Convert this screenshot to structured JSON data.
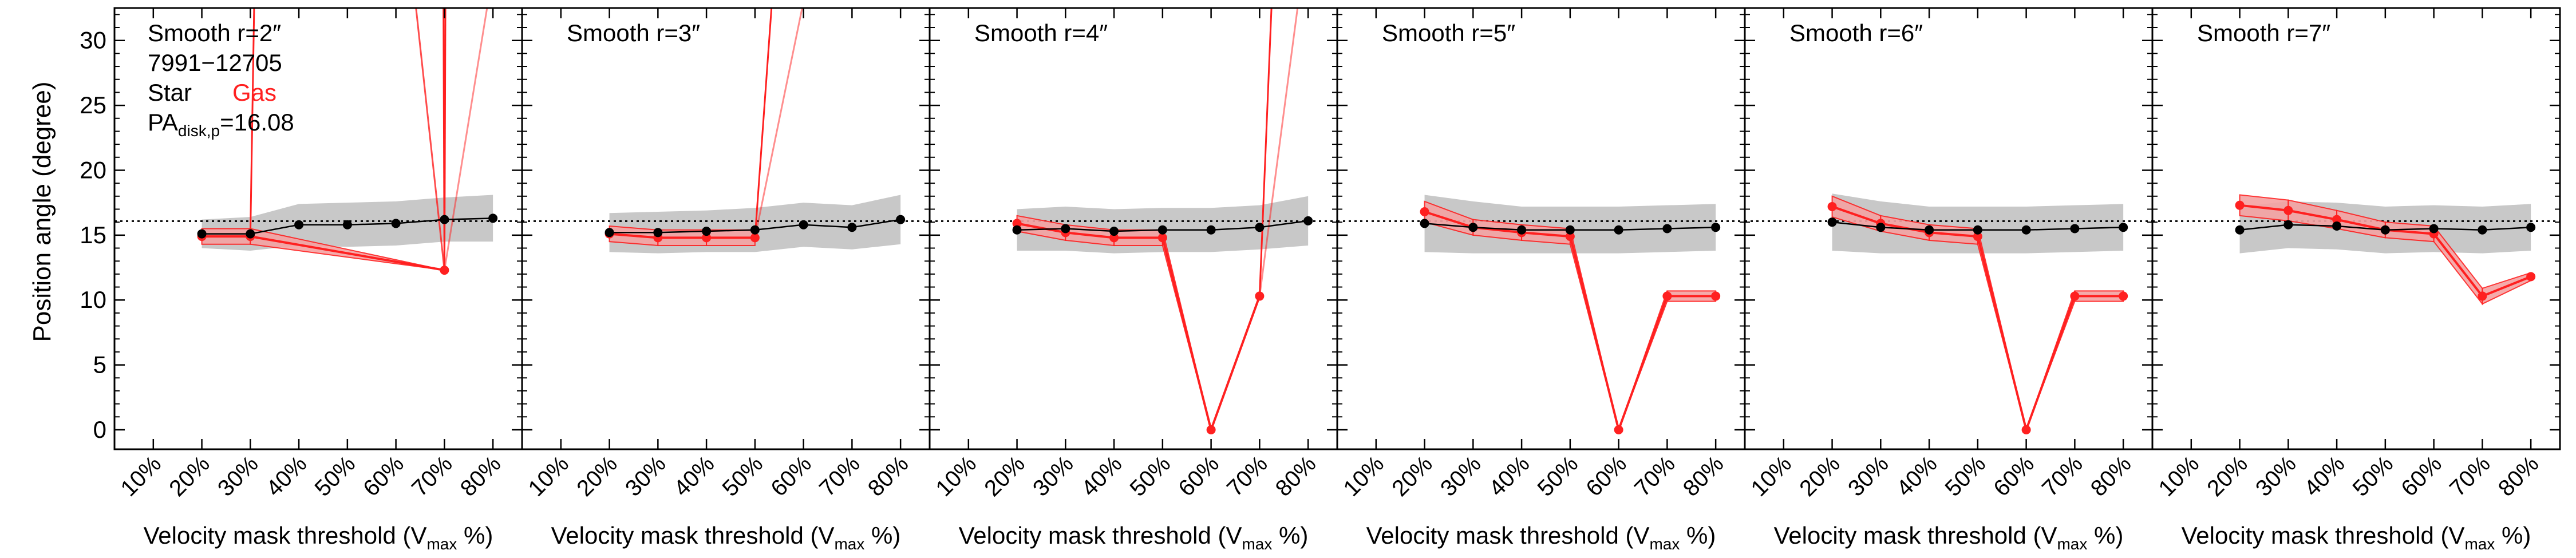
{
  "figure": {
    "ylabel": "Position angle (degree)",
    "xlabel_main": "Velocity mask threshold (V",
    "xlabel_sub": "max",
    "xlabel_tail": " %)",
    "reference_pa": 16.08,
    "panel_info": {
      "object_id": "7991−12705",
      "legend_star": "Star",
      "legend_gas": "Gas",
      "pa_prefix": "PA",
      "pa_sub": "disk,p",
      "pa_value_text": "=16.08"
    },
    "colors": {
      "star": "#000000",
      "star_band": "#c8c8c8",
      "gas": "#ff2020",
      "gas_band": "#f4a3a3",
      "reference": "#000000"
    }
  },
  "chart_data": [
    {
      "type": "line",
      "title": "Smooth r=2″",
      "categories": [
        "10%",
        "20%",
        "30%",
        "40%",
        "50%",
        "60%",
        "70%",
        "80%"
      ],
      "ylim": [
        -1.5,
        32.5
      ],
      "yticks": [
        "0",
        "5",
        "10",
        "15",
        "20",
        "25",
        "30"
      ],
      "star": {
        "x": [
          20,
          30,
          40,
          50,
          60,
          70,
          80
        ],
        "values": [
          15.1,
          15.1,
          15.8,
          15.8,
          15.9,
          16.2,
          16.3
        ],
        "err": [
          1.1,
          1.3,
          1.6,
          1.7,
          1.7,
          1.7,
          1.8
        ]
      },
      "gas": {
        "x": [
          20,
          30,
          70
        ],
        "values": [
          14.9,
          14.9,
          12.3
        ],
        "err": [
          0.6,
          0.6,
          0.0
        ],
        "pinned": []
      },
      "gas_spikes": [
        {
          "x0": 30,
          "y0": 14.9,
          "x1": 30.8,
          "y1": 33,
          "opacity": 1
        },
        {
          "x0": 70,
          "y0": 12.3,
          "x1": 64,
          "y1": 33,
          "opacity": 0.8
        },
        {
          "x0": 70,
          "y0": 12.3,
          "x1": 69.8,
          "y1": 33,
          "opacity": 1
        },
        {
          "x0": 70,
          "y0": 12.3,
          "x1": 70.2,
          "y1": 33,
          "opacity": 1
        },
        {
          "x0": 70,
          "y0": 12.3,
          "x1": 79,
          "y1": 33,
          "opacity": 0.5
        }
      ],
      "show_info": true
    },
    {
      "type": "line",
      "title": "Smooth r=3″",
      "categories": [
        "10%",
        "20%",
        "30%",
        "40%",
        "50%",
        "60%",
        "70%",
        "80%"
      ],
      "ylim": [
        -1.5,
        32.5
      ],
      "star": {
        "x": [
          20,
          30,
          40,
          50,
          60,
          70,
          80
        ],
        "values": [
          15.2,
          15.2,
          15.3,
          15.4,
          15.8,
          15.6,
          16.2
        ],
        "err": [
          1.5,
          1.6,
          1.6,
          1.7,
          1.7,
          1.7,
          1.9
        ]
      },
      "gas": {
        "x": [
          20,
          30,
          40,
          50
        ],
        "values": [
          15.1,
          14.8,
          14.8,
          14.8
        ],
        "err": [
          0.6,
          0.6,
          0.6,
          0.6
        ],
        "pinned": []
      },
      "gas_spikes": [
        {
          "x0": 50,
          "y0": 14.8,
          "x1": 53.5,
          "y1": 33,
          "opacity": 1
        },
        {
          "x0": 50,
          "y0": 14.8,
          "x1": 60,
          "y1": 33,
          "opacity": 0.5
        }
      ],
      "show_info": false
    },
    {
      "type": "line",
      "title": "Smooth r=4″",
      "categories": [
        "10%",
        "20%",
        "30%",
        "40%",
        "50%",
        "60%",
        "70%",
        "80%"
      ],
      "ylim": [
        -1.5,
        32.5
      ],
      "star": {
        "x": [
          20,
          30,
          40,
          50,
          60,
          70,
          80
        ],
        "values": [
          15.4,
          15.5,
          15.3,
          15.4,
          15.4,
          15.6,
          16.1
        ],
        "err": [
          1.6,
          1.7,
          1.7,
          1.7,
          1.7,
          1.7,
          1.9
        ]
      },
      "gas": {
        "x": [
          20,
          30,
          40,
          50,
          60,
          70
        ],
        "values": [
          15.9,
          15.2,
          14.8,
          14.8,
          0.0,
          10.3
        ],
        "err": [
          0.6,
          0.6,
          0.6,
          0.6,
          0.0,
          0.0
        ],
        "pinned": []
      },
      "gas_spikes": [
        {
          "x0": 70,
          "y0": 10.3,
          "x1": 72.5,
          "y1": 33,
          "opacity": 1
        },
        {
          "x0": 70,
          "y0": 10.3,
          "x1": 78,
          "y1": 33,
          "opacity": 0.5
        }
      ],
      "show_info": false
    },
    {
      "type": "line",
      "title": "Smooth r=5″",
      "categories": [
        "10%",
        "20%",
        "30%",
        "40%",
        "50%",
        "60%",
        "70%",
        "80%"
      ],
      "ylim": [
        -1.5,
        32.5
      ],
      "star": {
        "x": [
          20,
          30,
          40,
          50,
          60,
          70,
          80
        ],
        "values": [
          15.9,
          15.6,
          15.4,
          15.4,
          15.4,
          15.5,
          15.6
        ],
        "err": [
          2.2,
          2.0,
          1.8,
          1.8,
          1.8,
          1.8,
          1.8
        ]
      },
      "gas": {
        "x": [
          20,
          30,
          40,
          50,
          60,
          70,
          80
        ],
        "values": [
          16.8,
          15.6,
          15.2,
          14.9,
          0.0,
          10.3,
          10.3
        ],
        "err": [
          0.8,
          0.6,
          0.6,
          0.6,
          0.0,
          0.4,
          0.4
        ],
        "pinned": []
      },
      "gas_spikes": [],
      "show_info": false
    },
    {
      "type": "line",
      "title": "Smooth r=6″",
      "categories": [
        "10%",
        "20%",
        "30%",
        "40%",
        "50%",
        "60%",
        "70%",
        "80%"
      ],
      "ylim": [
        -1.5,
        32.5
      ],
      "star": {
        "x": [
          20,
          30,
          40,
          50,
          60,
          70,
          80
        ],
        "values": [
          16.0,
          15.6,
          15.4,
          15.4,
          15.4,
          15.5,
          15.6
        ],
        "err": [
          2.2,
          2.0,
          1.8,
          1.8,
          1.8,
          1.8,
          1.8
        ]
      },
      "gas": {
        "x": [
          20,
          30,
          40,
          50,
          60,
          70,
          80
        ],
        "values": [
          17.2,
          15.9,
          15.2,
          14.9,
          0.0,
          10.3,
          10.3
        ],
        "err": [
          0.8,
          0.6,
          0.6,
          0.6,
          0.0,
          0.4,
          0.4
        ],
        "pinned": []
      },
      "gas_spikes": [],
      "show_info": false
    },
    {
      "type": "line",
      "title": "Smooth r=7″",
      "categories": [
        "10%",
        "20%",
        "30%",
        "40%",
        "50%",
        "60%",
        "70%",
        "80%"
      ],
      "ylim": [
        -1.5,
        32.5
      ],
      "star": {
        "x": [
          20,
          30,
          40,
          50,
          60,
          70,
          80
        ],
        "values": [
          15.4,
          15.8,
          15.7,
          15.4,
          15.5,
          15.4,
          15.6
        ],
        "err": [
          1.8,
          1.8,
          1.8,
          1.8,
          1.8,
          1.8,
          1.8
        ]
      },
      "gas": {
        "x": [
          20,
          30,
          40,
          50,
          60,
          70,
          80
        ],
        "values": [
          17.3,
          16.9,
          16.2,
          15.4,
          15.1,
          10.3,
          11.8
        ],
        "err": [
          0.8,
          0.8,
          0.7,
          0.6,
          0.6,
          0.6,
          0.3
        ],
        "pinned": []
      },
      "gas_spikes": [],
      "show_info": false
    }
  ]
}
